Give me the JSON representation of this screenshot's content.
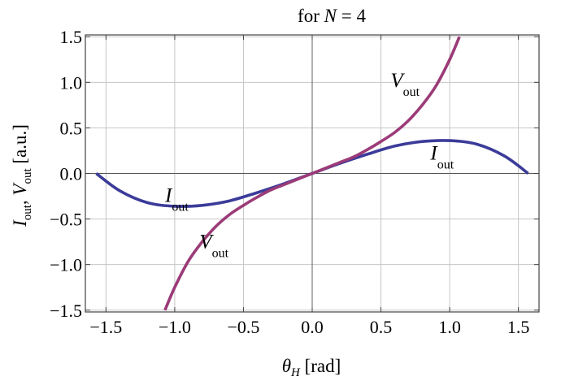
{
  "chart_data": {
    "type": "line",
    "title": "for N = 4",
    "title_parts": {
      "prefix": "for ",
      "var": "N",
      "suffix": " = 4"
    },
    "xlabel": "θH [rad]",
    "xlabel_parts": {
      "var": "θ",
      "sub": "H",
      "unit": " [rad]"
    },
    "ylabel": "Iout , Vout [a.u.]",
    "ylabel_parts": {
      "var1": "I",
      "sub1": "out",
      "sep": ", ",
      "var2": "V",
      "sub2": "out",
      "unit": " [a.u.]"
    },
    "xlim": [
      -1.65,
      1.65
    ],
    "ylim": [
      -1.52,
      1.52
    ],
    "xticks": [
      -1.5,
      -1.0,
      -0.5,
      0.0,
      0.5,
      1.0,
      1.5
    ],
    "xtick_labels": [
      "−1.5",
      "−1.0",
      "−0.5",
      "0.0",
      "0.5",
      "1.0",
      "1.5"
    ],
    "yticks": [
      -1.5,
      -1.0,
      -0.5,
      0.0,
      0.5,
      1.0,
      1.5
    ],
    "ytick_labels": [
      "−1.5",
      "−1.0",
      "−0.5",
      "0.0",
      "0.5",
      "1.0",
      "1.5"
    ],
    "grid": true,
    "series": [
      {
        "name": "Iout",
        "label_var": "I",
        "label_sub": "out",
        "color": "#3b3b9a",
        "x": [
          -1.571,
          -1.4,
          -1.2,
          -1.0,
          -0.8,
          -0.6,
          -0.4,
          -0.2,
          0.0,
          0.2,
          0.4,
          0.6,
          0.8,
          1.0,
          1.2,
          1.4,
          1.571
        ],
        "y": [
          0.0,
          -0.19,
          -0.32,
          -0.36,
          -0.35,
          -0.3,
          -0.21,
          -0.11,
          0.0,
          0.11,
          0.21,
          0.3,
          0.35,
          0.36,
          0.32,
          0.19,
          0.0
        ]
      },
      {
        "name": "Vout",
        "label_var": "V",
        "label_sub": "out",
        "color": "#9b3b78",
        "x": [
          -1.071,
          -1.0,
          -0.9,
          -0.8,
          -0.7,
          -0.6,
          -0.5,
          -0.4,
          -0.3,
          -0.2,
          -0.1,
          0.0,
          0.1,
          0.2,
          0.3,
          0.4,
          0.5,
          0.6,
          0.7,
          0.8,
          0.9,
          1.0,
          1.071
        ],
        "y": [
          -1.5,
          -1.25,
          -0.96,
          -0.75,
          -0.58,
          -0.45,
          -0.35,
          -0.26,
          -0.18,
          -0.12,
          -0.06,
          0.0,
          0.06,
          0.12,
          0.18,
          0.26,
          0.35,
          0.45,
          0.58,
          0.75,
          0.96,
          1.25,
          1.5
        ]
      }
    ],
    "annotations": [
      {
        "series": "Iout",
        "x": -1.07,
        "y": -0.31
      },
      {
        "series": "Iout",
        "x": 0.86,
        "y": 0.15
      },
      {
        "series": "Vout",
        "x": 0.57,
        "y": 0.95
      },
      {
        "series": "Vout",
        "x": -0.82,
        "y": -0.82
      }
    ]
  }
}
